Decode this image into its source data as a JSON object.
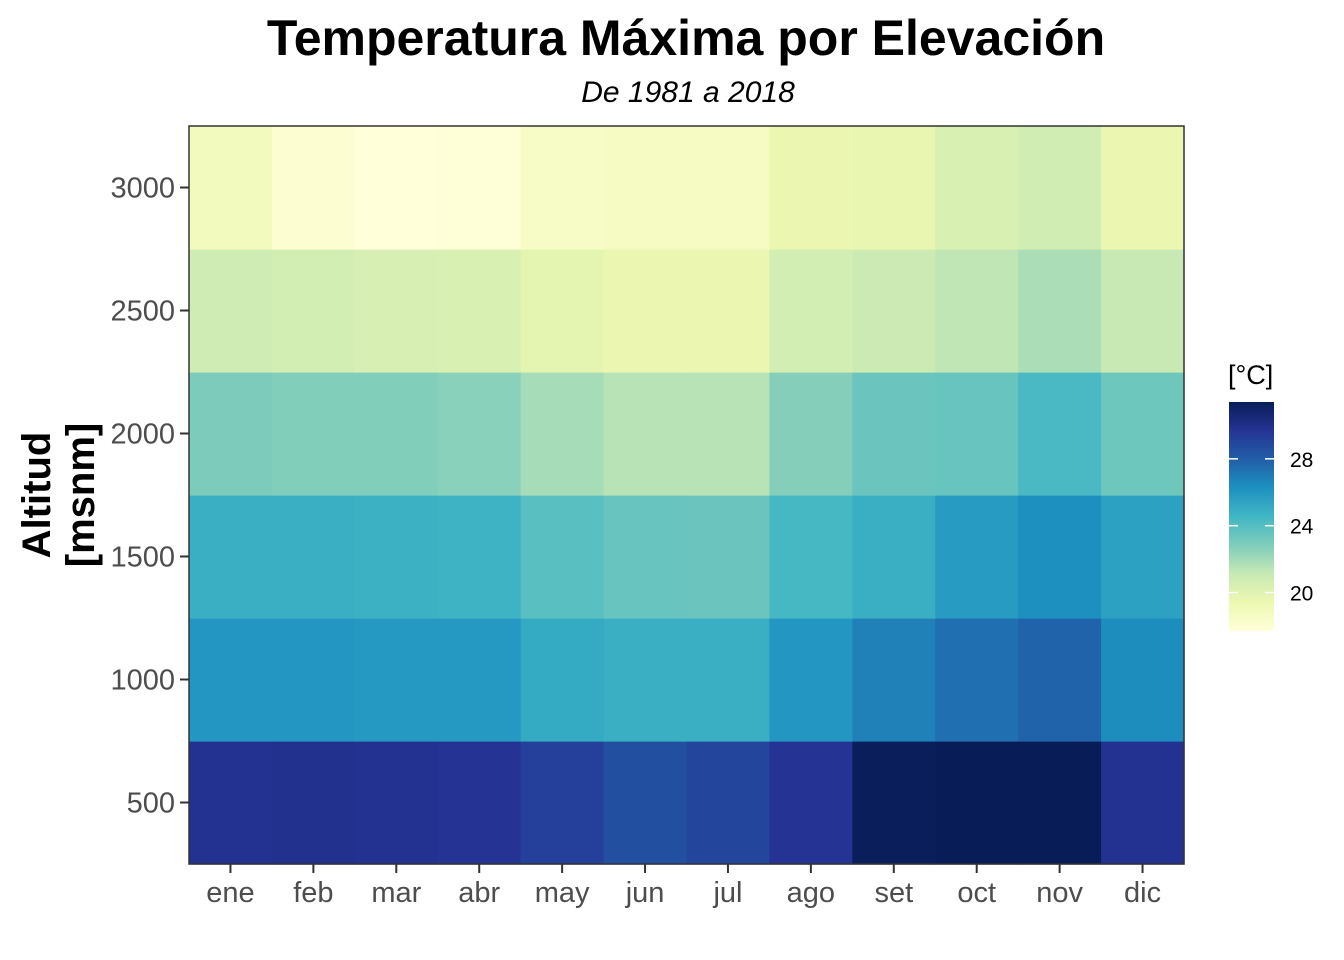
{
  "chart_data": {
    "type": "heatmap",
    "title": "Temperatura Máxima por Elevación",
    "subtitle": "De 1981 a 2018",
    "xlabel": "",
    "ylabel_lines": [
      "Altitud",
      "[msnm]"
    ],
    "x": [
      "ene",
      "feb",
      "mar",
      "abr",
      "may",
      "jun",
      "jul",
      "ago",
      "set",
      "oct",
      "nov",
      "dic"
    ],
    "y": [
      500,
      1000,
      1500,
      2000,
      2500,
      3000
    ],
    "y_tick_labels": [
      "500",
      "1000",
      "1500",
      "2000",
      "2500",
      "3000"
    ],
    "ylim": [
      250,
      3250
    ],
    "values": [
      [
        29.8,
        29.9,
        29.8,
        29.7,
        29.2,
        28.6,
        29.0,
        29.7,
        31.3,
        31.4,
        31.4,
        29.8
      ],
      [
        26.0,
        26.0,
        25.9,
        25.9,
        25.1,
        24.9,
        24.9,
        26.0,
        26.8,
        27.4,
        27.8,
        26.4
      ],
      [
        24.9,
        24.9,
        24.8,
        24.7,
        23.9,
        23.5,
        23.4,
        24.4,
        24.9,
        25.8,
        26.3,
        25.5
      ],
      [
        22.9,
        22.8,
        22.8,
        22.6,
        21.9,
        21.5,
        21.5,
        22.7,
        23.4,
        23.5,
        24.3,
        23.3
      ],
      [
        20.8,
        20.6,
        20.4,
        20.3,
        19.8,
        19.5,
        19.5,
        20.6,
        20.9,
        21.3,
        21.8,
        21.1
      ],
      [
        18.9,
        18.0,
        17.7,
        17.8,
        18.5,
        18.6,
        18.6,
        19.5,
        19.6,
        20.3,
        20.7,
        19.5
      ]
    ],
    "color_scale": {
      "name": "YlGnBu",
      "min": 17.7,
      "max": 31.4,
      "stops": [
        "#ffffd9",
        "#edf8b1",
        "#c7e9b4",
        "#7fcdbb",
        "#41b6c4",
        "#1d91c0",
        "#225ea8",
        "#253494",
        "#081d58"
      ]
    },
    "legend": {
      "title": "[°C]",
      "ticks": [
        20,
        24,
        28
      ],
      "tick_labels": [
        "20",
        "24",
        "28"
      ],
      "position": "right"
    },
    "grid": false
  }
}
